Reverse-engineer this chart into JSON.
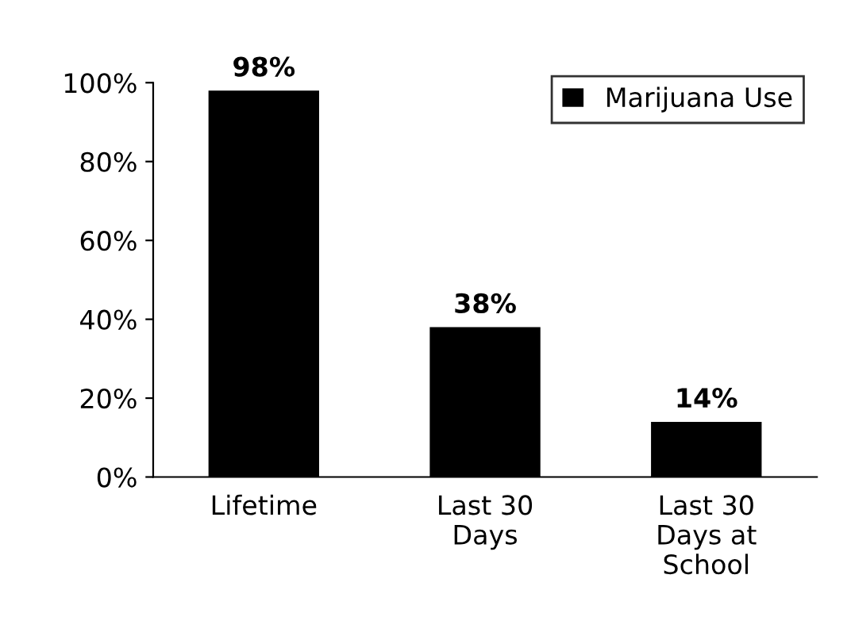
{
  "chart_data": {
    "type": "bar",
    "categories": [
      "Lifetime",
      "Last 30\nDays",
      "Last 30\nDays at\nSchool"
    ],
    "series": [
      {
        "name": "Marijuana Use",
        "color": "#000000",
        "values": [
          98,
          38,
          14
        ]
      }
    ],
    "ylim": [
      0,
      100
    ],
    "yticks": [
      {
        "value": 0,
        "label": "0%"
      },
      {
        "value": 20,
        "label": "20%"
      },
      {
        "value": 40,
        "label": "40%"
      },
      {
        "value": 60,
        "label": "60%"
      },
      {
        "value": 80,
        "label": "80%"
      },
      {
        "value": 100,
        "label": "100%"
      }
    ],
    "value_labels": [
      "98%",
      "38%",
      "14%"
    ],
    "legend": "top right",
    "grid": false
  }
}
